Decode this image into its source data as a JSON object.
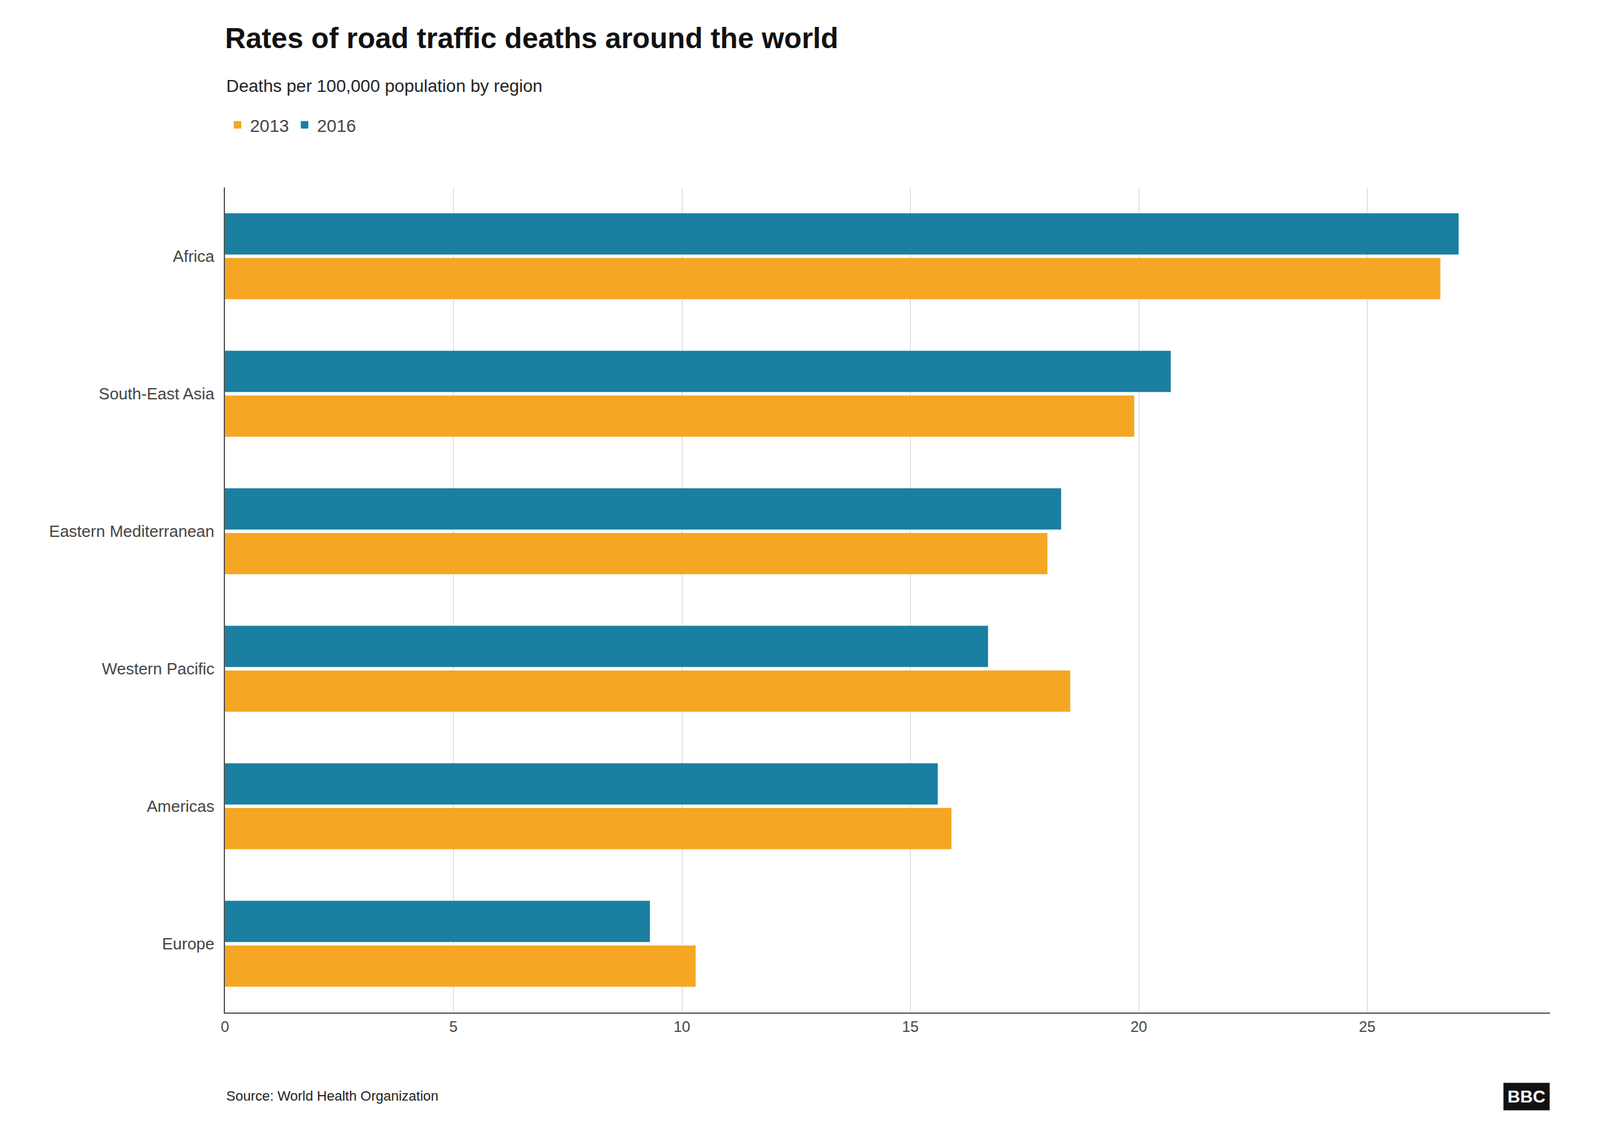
{
  "chart_data": {
    "type": "bar",
    "orientation": "horizontal",
    "title": "Rates of road traffic deaths around the world",
    "subtitle": "Deaths per 100,000 population by region",
    "annotations": [
      "Source: World Health Organization",
      "BBC"
    ],
    "categories": [
      "Africa",
      "South-East Asia",
      "Eastern Mediterranean",
      "Western Pacific",
      "Americas",
      "Europe"
    ],
    "series": [
      {
        "name": "2013",
        "color": "#f5a623",
        "values": [
          26.6,
          19.9,
          18.0,
          18.5,
          15.9,
          10.3
        ]
      },
      {
        "name": "2016",
        "color": "#1a7fa0",
        "values": [
          27.0,
          20.7,
          18.3,
          16.7,
          15.6,
          9.3
        ]
      }
    ],
    "xlim": [
      0,
      29
    ],
    "xticks": [
      0,
      5,
      10,
      15,
      20,
      25
    ],
    "grid": true,
    "legend": "top-left"
  }
}
